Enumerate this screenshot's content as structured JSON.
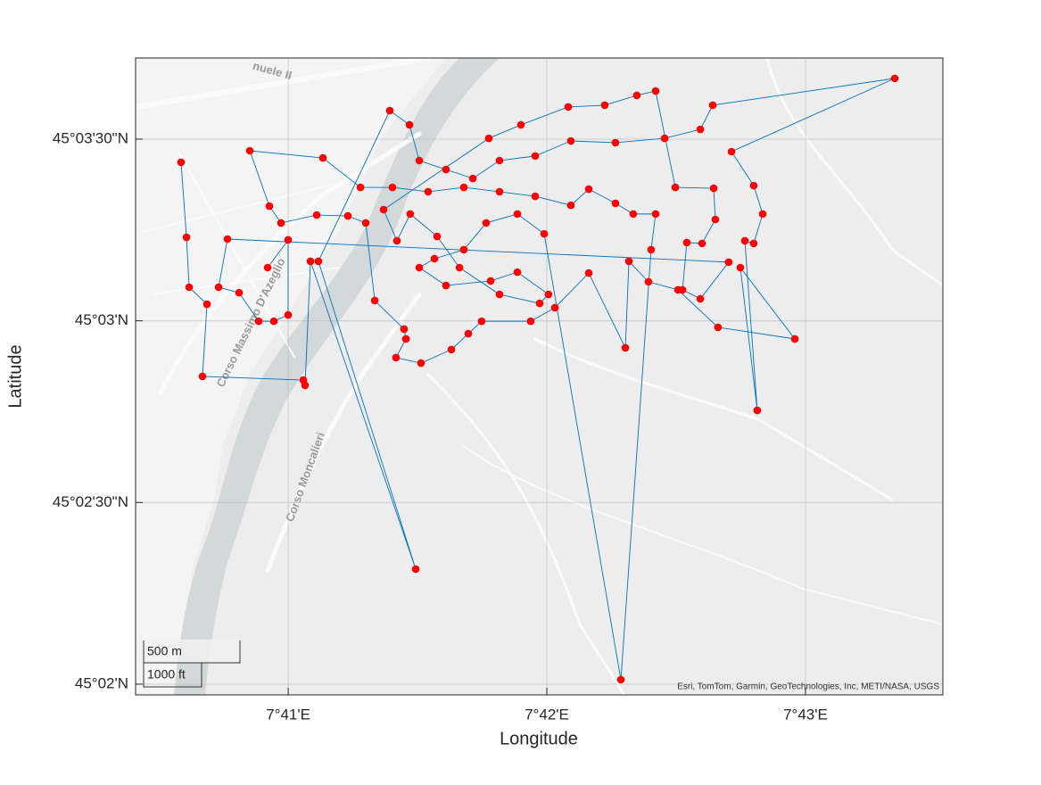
{
  "chart_data": {
    "type": "line",
    "xlabel": "Longitude",
    "ylabel": "Latitude",
    "xlim": [
      7.6735,
      7.72552
    ],
    "ylim": [
      45.03284,
      45.062056
    ],
    "xticks": [
      {
        "value": 7.683333333,
        "label": "7°41'E"
      },
      {
        "value": 7.7,
        "label": "7°42'E"
      },
      {
        "value": 7.716666667,
        "label": "7°43'E"
      }
    ],
    "yticks": [
      {
        "value": 45.033333333,
        "label": "45°02'N"
      },
      {
        "value": 45.041666667,
        "label": "45°02'30\"N"
      },
      {
        "value": 45.05,
        "label": "45°03'N"
      },
      {
        "value": 45.058333333,
        "label": "45°03'30\"N"
      }
    ],
    "grid": true,
    "x": [
      7.67643,
      7.67678,
      7.67695,
      7.6781,
      7.67781,
      7.68431,
      7.68442,
      7.68477,
      7.69155,
      7.68528,
      7.68988,
      7.69115,
      7.69178,
      7.6935,
      7.69523,
      7.69695,
      7.69925,
      7.70155,
      7.70442,
      7.70759,
      7.70989,
      7.71069,
      7.72242,
      7.7119,
      7.71333,
      7.71391,
      7.71333,
      7.71276,
      7.71356,
      7.71247,
      7.71598,
      7.71103,
      7.70845,
      7.70655,
      7.70529,
      7.70506,
      7.7027,
      7.70052,
      7.69896,
      7.6958,
      7.69494,
      7.69385,
      7.69189,
      7.69028,
      7.69092,
      7.6908,
      7.68891,
      7.68833,
      7.68718,
      7.68517,
      7.68287,
      7.68212,
      7.68086,
      7.68557,
      7.68799,
      7.69005,
      7.69235,
      7.69465,
      7.69695,
      7.69925,
      7.70155,
      7.7027,
      7.70442,
      7.70557,
      7.70701,
      7.70672,
      7.70477,
      7.69983,
      7.6981,
      7.69609,
      7.69465,
      7.69276,
      7.69178,
      7.6935,
      7.69638,
      7.6981,
      7.70011,
      7.69954,
      7.69695,
      7.69437,
      7.69293,
      7.6912,
      7.69034,
      7.68948,
      7.69626,
      7.69833,
      7.70138,
      7.70373,
      7.7058,
      7.70701,
      7.70828,
      7.71075,
      7.71086,
      7.71,
      7.70902,
      7.70874,
      7.70989,
      7.71172,
      7.67942,
      7.67885,
      7.68017,
      7.68143,
      7.68241,
      7.68333,
      7.68333,
      7.68201
    ],
    "series": [
      {
        "color": "#0072bd",
        "marker_color": "#ff0000",
        "values": [
          45.05727,
          45.05383,
          45.05154,
          45.05076,
          45.04745,
          45.04728,
          45.04704,
          45.05273,
          45.03861,
          45.05273,
          45.05964,
          45.05899,
          45.05735,
          45.05694,
          45.05653,
          45.05735,
          45.05756,
          45.05825,
          45.05817,
          45.05837,
          45.05878,
          45.05989,
          45.06112,
          45.05776,
          45.0562,
          45.0549,
          45.05355,
          45.05367,
          45.04589,
          45.05244,
          45.04917,
          45.0497,
          45.05142,
          45.05179,
          45.05273,
          45.04876,
          45.05219,
          45.0506,
          45.04998,
          45.04998,
          45.04941,
          45.04868,
          45.04806,
          45.04831,
          45.04917,
          45.04962,
          45.05093,
          45.05449,
          45.05481,
          45.05485,
          45.05449,
          45.05526,
          45.0578,
          45.05747,
          45.05612,
          45.05612,
          45.05592,
          45.05612,
          45.05592,
          45.05571,
          45.0553,
          45.05604,
          45.05539,
          45.0549,
          45.0549,
          45.05326,
          45.03354,
          45.05399,
          45.0549,
          45.05449,
          45.05326,
          45.05285,
          45.05244,
          45.05162,
          45.05183,
          45.05223,
          45.05121,
          45.0508,
          45.05121,
          45.05244,
          45.05387,
          45.0549,
          45.05367,
          45.0551,
          45.05837,
          45.05899,
          45.05981,
          45.05989,
          45.06034,
          45.06054,
          45.05612,
          45.05608,
          45.05465,
          45.05355,
          45.05359,
          45.05142,
          45.05101,
          45.05269,
          45.05375,
          45.05154,
          45.05129,
          45.04998,
          45.04998,
          45.05027,
          45.05371,
          45.05244
        ]
      }
    ],
    "map_labels": [
      "nuele II",
      "Corso Massimo D'Azeglio",
      "Corso Moncalieri"
    ],
    "scale_bar": [
      "500 m",
      "1000 ft"
    ],
    "attribution": "Esri, TomTom, Garmin, GeoTechnologies, Inc, METI/NASA, USGS"
  }
}
